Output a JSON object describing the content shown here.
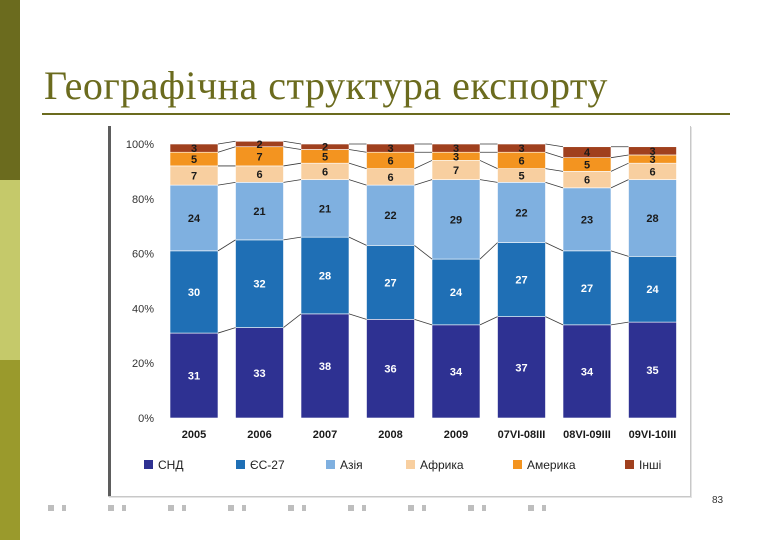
{
  "slide": {
    "title": "Географічна структура експорту",
    "page_number": "83"
  },
  "colors": {
    "sidebar_dark": "#6b6b1e",
    "sidebar_light": "#c5c96a"
  },
  "chart_data": {
    "type": "bar",
    "stacked": true,
    "normalized": true,
    "title": "",
    "xlabel": "",
    "ylabel": "",
    "ylim": [
      0,
      100
    ],
    "yticks": [
      "0%",
      "20%",
      "40%",
      "60%",
      "80%",
      "100%"
    ],
    "grid": false,
    "legend_position": "bottom",
    "categories": [
      "2005",
      "2006",
      "2007",
      "2008",
      "2009",
      "07VI-08III",
      "08VI-09III",
      "09VI-10III"
    ],
    "series": [
      {
        "name": "СНД",
        "color": "#2e3192",
        "label_color": "#ffffff",
        "values": [
          31,
          33,
          38,
          36,
          34,
          37,
          34,
          35
        ]
      },
      {
        "name": "ЄС-27",
        "color": "#1f6fb5",
        "label_color": "#ffffff",
        "values": [
          30,
          32,
          28,
          27,
          24,
          27,
          27,
          24
        ]
      },
      {
        "name": "Азія",
        "color": "#7fb0e0",
        "label_color": "#1a1a1a",
        "values": [
          24,
          21,
          21,
          22,
          29,
          22,
          23,
          28
        ]
      },
      {
        "name": "Африка",
        "color": "#f8cfa0",
        "label_color": "#1a1a1a",
        "values": [
          7,
          6,
          6,
          6,
          7,
          5,
          6,
          6
        ]
      },
      {
        "name": "Америка",
        "color": "#f39420",
        "label_color": "#1a1a1a",
        "values": [
          5,
          7,
          5,
          6,
          3,
          6,
          5,
          3
        ]
      },
      {
        "name": "Інші",
        "color": "#a0401e",
        "label_color": "#1a1a1a",
        "values": [
          3,
          2,
          2,
          3,
          3,
          3,
          4,
          3
        ]
      }
    ]
  }
}
